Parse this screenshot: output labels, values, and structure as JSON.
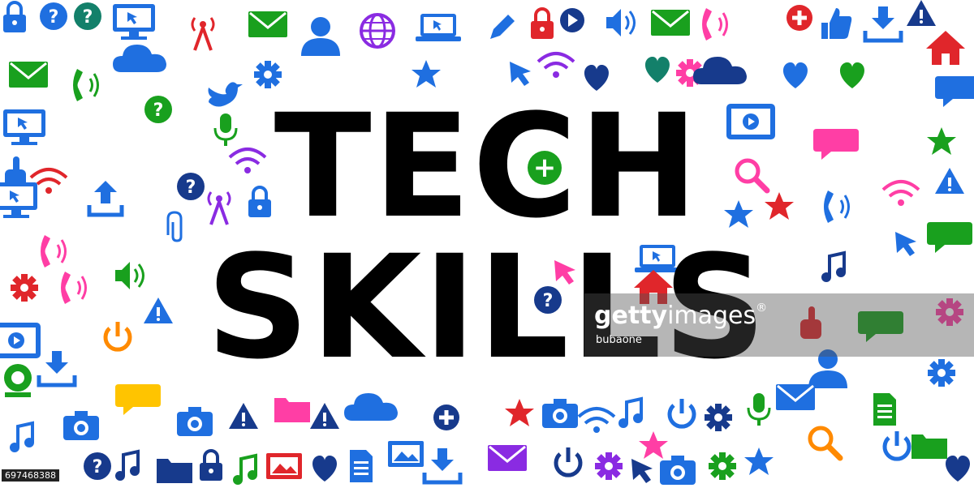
{
  "headline": {
    "line1": "TECH",
    "line2": "SKILLS"
  },
  "watermark": {
    "brand_bold": "getty",
    "brand_light": "images",
    "registered": "®",
    "author": "bubaone"
  },
  "image_id": "697468388",
  "colors": {
    "text": "#000000",
    "blue": "#1f6fe0",
    "green": "#19a01e",
    "purple": "#8a2be2",
    "pink": "#ff3ea5",
    "red": "#e0262b",
    "navy": "#173a8c",
    "teal": "#13806a"
  },
  "icons": [
    {
      "type": "lock",
      "color": "#1f6fe0"
    },
    {
      "type": "question",
      "color": "#1f6fe0"
    },
    {
      "type": "question",
      "color": "#13806a"
    },
    {
      "type": "monitor",
      "color": "#1f6fe0"
    },
    {
      "type": "wifi-tower",
      "color": "#e0262b"
    },
    {
      "type": "mail",
      "color": "#19a01e"
    },
    {
      "type": "user",
      "color": "#1f6fe0"
    },
    {
      "type": "globe",
      "color": "#8a2be2"
    },
    {
      "type": "laptop",
      "color": "#1f6fe0"
    },
    {
      "type": "pencil",
      "color": "#1f6fe0"
    },
    {
      "type": "lock",
      "color": "#e0262b"
    },
    {
      "type": "play",
      "color": "#173a8c"
    },
    {
      "type": "speaker",
      "color": "#1f6fe0"
    },
    {
      "type": "mail",
      "color": "#19a01e"
    },
    {
      "type": "phone",
      "color": "#ff3ea5"
    },
    {
      "type": "plus",
      "color": "#e0262b"
    },
    {
      "type": "thumb",
      "color": "#1f6fe0"
    },
    {
      "type": "download",
      "color": "#1f6fe0"
    },
    {
      "type": "warning",
      "color": "#173a8c"
    },
    {
      "type": "house",
      "color": "#e0262b"
    },
    {
      "type": "mail",
      "color": "#19a01e"
    },
    {
      "type": "phone",
      "color": "#19a01e"
    },
    {
      "type": "cloud",
      "color": "#1f6fe0"
    },
    {
      "type": "gear",
      "color": "#1f6fe0"
    },
    {
      "type": "star",
      "color": "#1f6fe0"
    },
    {
      "type": "cursor",
      "color": "#1f6fe0"
    },
    {
      "type": "wifi",
      "color": "#8a2be2"
    },
    {
      "type": "heart",
      "color": "#173a8c"
    },
    {
      "type": "heart",
      "color": "#13806a"
    },
    {
      "type": "gear",
      "color": "#ff3ea5"
    },
    {
      "type": "cloud",
      "color": "#173a8c"
    },
    {
      "type": "heart",
      "color": "#1f6fe0"
    },
    {
      "type": "heart",
      "color": "#19a01e"
    },
    {
      "type": "chat",
      "color": "#1f6fe0"
    },
    {
      "type": "monitor",
      "color": "#1f6fe0"
    },
    {
      "type": "question",
      "color": "#19a01e"
    },
    {
      "type": "bird",
      "color": "#1f6fe0"
    },
    {
      "type": "mic",
      "color": "#19a01e"
    },
    {
      "type": "tablet",
      "color": "#1f6fe0"
    },
    {
      "type": "chat",
      "color": "#ff3ea5"
    },
    {
      "type": "star",
      "color": "#19a01e"
    },
    {
      "type": "hand",
      "color": "#1f6fe0"
    },
    {
      "type": "wifi",
      "color": "#e0262b"
    },
    {
      "type": "question",
      "color": "#173a8c"
    },
    {
      "type": "wifi",
      "color": "#8a2be2"
    },
    {
      "type": "search",
      "color": "#ff3ea5"
    },
    {
      "type": "star",
      "color": "#e0262b"
    },
    {
      "type": "warning",
      "color": "#1f6fe0"
    },
    {
      "type": "monitor",
      "color": "#1f6fe0"
    },
    {
      "type": "upload",
      "color": "#1f6fe0"
    },
    {
      "type": "wifi-tower",
      "color": "#8a2be2"
    },
    {
      "type": "lock",
      "color": "#1f6fe0"
    },
    {
      "type": "star",
      "color": "#1f6fe0"
    },
    {
      "type": "wifi",
      "color": "#ff3ea5"
    },
    {
      "type": "phone",
      "color": "#1f6fe0"
    },
    {
      "type": "cursor",
      "color": "#1f6fe0"
    },
    {
      "type": "chat",
      "color": "#19a01e"
    },
    {
      "type": "music",
      "color": "#173a8c"
    },
    {
      "type": "clip",
      "color": "#1f6fe0"
    },
    {
      "type": "phone",
      "color": "#ff3ea5"
    },
    {
      "type": "phone",
      "color": "#ff3ea5"
    },
    {
      "type": "speaker",
      "color": "#19a01e"
    },
    {
      "type": "cursor",
      "color": "#ff3ea5"
    },
    {
      "type": "laptop",
      "color": "#1f6fe0"
    },
    {
      "type": "gear",
      "color": "#e0262b"
    },
    {
      "type": "warning",
      "color": "#1f6fe0"
    },
    {
      "type": "question",
      "color": "#173a8c"
    },
    {
      "type": "house",
      "color": "#e0262b"
    },
    {
      "type": "power",
      "color": "#ff8a00"
    },
    {
      "type": "tablet",
      "color": "#1f6fe0"
    },
    {
      "type": "chat",
      "color": "#19a01e"
    },
    {
      "type": "gear",
      "color": "#ff3ea5"
    },
    {
      "type": "hand",
      "color": "#e0262b"
    },
    {
      "type": "user",
      "color": "#1f6fe0"
    },
    {
      "type": "download",
      "color": "#1f6fe0"
    },
    {
      "type": "chat",
      "color": "#ffc400"
    },
    {
      "type": "webcam",
      "color": "#19a01e"
    },
    {
      "type": "gear",
      "color": "#1f6fe0"
    },
    {
      "type": "mail",
      "color": "#1f6fe0"
    },
    {
      "type": "document",
      "color": "#19a01e"
    },
    {
      "type": "music",
      "color": "#1f6fe0"
    },
    {
      "type": "camera",
      "color": "#1f6fe0"
    },
    {
      "type": "camera",
      "color": "#1f6fe0"
    },
    {
      "type": "warning",
      "color": "#173a8c"
    },
    {
      "type": "folder",
      "color": "#ff3ea5"
    },
    {
      "type": "warning",
      "color": "#173a8c"
    },
    {
      "type": "cloud",
      "color": "#1f6fe0"
    },
    {
      "type": "plus",
      "color": "#173a8c"
    },
    {
      "type": "star",
      "color": "#e0262b"
    },
    {
      "type": "camera",
      "color": "#1f6fe0"
    },
    {
      "type": "wifi",
      "color": "#1f6fe0"
    },
    {
      "type": "music",
      "color": "#1f6fe0"
    },
    {
      "type": "power",
      "color": "#1f6fe0"
    },
    {
      "type": "gear",
      "color": "#173a8c"
    },
    {
      "type": "mic",
      "color": "#19a01e"
    },
    {
      "type": "search",
      "color": "#ff8a00"
    },
    {
      "type": "power",
      "color": "#1f6fe0"
    },
    {
      "type": "folder",
      "color": "#19a01e"
    },
    {
      "type": "music",
      "color": "#173a8c"
    },
    {
      "type": "question",
      "color": "#173a8c"
    },
    {
      "type": "folder",
      "color": "#173a8c"
    },
    {
      "type": "lock",
      "color": "#173a8c"
    },
    {
      "type": "music",
      "color": "#19a01e"
    },
    {
      "type": "image",
      "color": "#e0262b"
    },
    {
      "type": "heart",
      "color": "#173a8c"
    },
    {
      "type": "document",
      "color": "#1f6fe0"
    },
    {
      "type": "image",
      "color": "#1f6fe0"
    },
    {
      "type": "download",
      "color": "#1f6fe0"
    },
    {
      "type": "mail",
      "color": "#8a2be2"
    },
    {
      "type": "power",
      "color": "#173a8c"
    },
    {
      "type": "gear",
      "color": "#8a2be2"
    },
    {
      "type": "star",
      "color": "#ff3ea5"
    },
    {
      "type": "camera",
      "color": "#1f6fe0"
    },
    {
      "type": "gear",
      "color": "#19a01e"
    },
    {
      "type": "star",
      "color": "#1f6fe0"
    },
    {
      "type": "cursor",
      "color": "#173a8c"
    },
    {
      "type": "heart",
      "color": "#173a8c"
    }
  ]
}
